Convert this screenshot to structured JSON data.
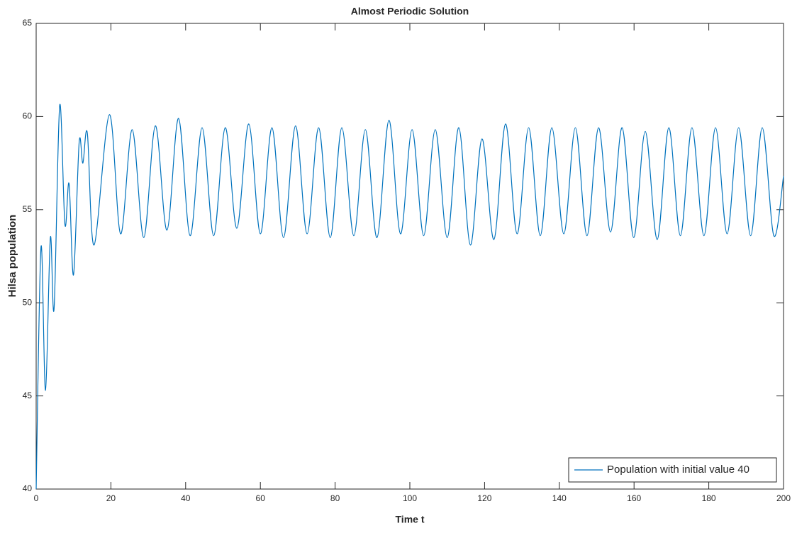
{
  "chart_data": {
    "type": "line",
    "title": "Almost Periodic Solution",
    "xlabel": "Time t",
    "ylabel": "Hilsa population",
    "x": [
      0,
      1.3,
      2.5,
      3.8,
      4.8,
      6.3,
      7.7,
      8.8,
      10,
      11.5,
      12.5,
      13.7,
      15.5,
      19.6,
      22.6,
      25.7,
      28.8,
      31.9,
      35,
      38.1,
      41.2,
      44.4,
      47.5,
      50.6,
      53.7,
      56.9,
      60,
      63.1,
      66.2,
      69.4,
      72.5,
      75.6,
      78.7,
      81.8,
      85,
      88.1,
      91.2,
      94.4,
      97.5,
      100.6,
      103.7,
      106.8,
      110,
      113.1,
      116.2,
      119.3,
      122.5,
      125.6,
      128.7,
      131.8,
      134.9,
      138,
      141.2,
      144.3,
      147.4,
      150.5,
      153.7,
      156.8,
      159.9,
      163,
      166.2,
      169.3,
      172.4,
      175.5,
      178.7,
      181.8,
      184.9,
      188,
      191.2,
      194.3,
      197.4,
      200
    ],
    "series": [
      {
        "name": "Population with initial value 40",
        "color": "#0072bd",
        "values": [
          40,
          53,
          45.3,
          53.5,
          49.7,
          60.6,
          54.2,
          56.4,
          51.5,
          58.6,
          57.5,
          59.1,
          53.1,
          60.1,
          53.7,
          59.3,
          53.5,
          59.5,
          53.9,
          59.9,
          53.6,
          59.4,
          53.6,
          59.4,
          54,
          59.6,
          53.7,
          59.4,
          53.5,
          59.5,
          53.7,
          59.4,
          53.5,
          59.4,
          53.6,
          59.3,
          53.5,
          59.8,
          53.7,
          59.3,
          53.6,
          59.3,
          53.5,
          59.4,
          53.1,
          58.8,
          53.4,
          59.6,
          53.7,
          59.4,
          53.6,
          59.4,
          53.7,
          59.4,
          53.6,
          59.4,
          53.8,
          59.4,
          53.5,
          59.2,
          53.4,
          59.4,
          53.6,
          59.4,
          53.6,
          59.4,
          53.7,
          59.4,
          53.6,
          59.4,
          53.6,
          56.8
        ]
      }
    ],
    "xlim": [
      0,
      200
    ],
    "xticks": [
      0,
      20,
      40,
      60,
      80,
      100,
      120,
      140,
      160,
      180,
      200
    ],
    "ylim": [
      40,
      65
    ],
    "yticks": [
      40,
      45,
      50,
      55,
      60,
      65
    ],
    "legend": "lower right"
  }
}
